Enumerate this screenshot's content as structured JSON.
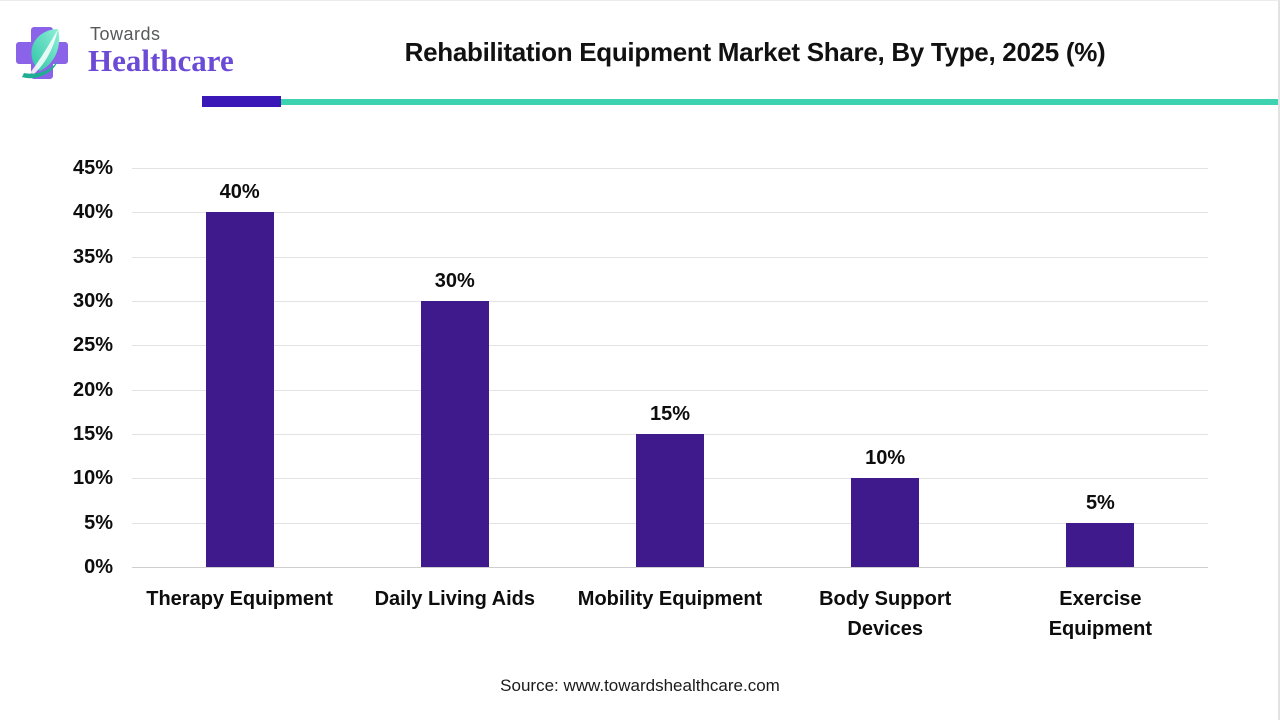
{
  "header": {
    "logo": {
      "line1": "Towards",
      "line2": "Healthcare"
    },
    "title": "Rehabilitation Equipment Market Share, By Type, 2025 (%)",
    "accent_purple": "#3a18b8",
    "accent_teal": "#3ed3b0"
  },
  "chart_data": {
    "type": "bar",
    "title": "Rehabilitation Equipment Market Share, By Type, 2025 (%)",
    "categories": [
      "Therapy Equipment",
      "Daily Living Aids",
      "Mobility Equipment",
      "Body Support Devices",
      "Exercise Equipment"
    ],
    "category_lines": [
      [
        "Therapy Equipment"
      ],
      [
        "Daily Living Aids"
      ],
      [
        "Mobility Equipment"
      ],
      [
        "Body Support",
        "Devices"
      ],
      [
        "Exercise",
        "Equipment"
      ]
    ],
    "values": [
      40,
      30,
      15,
      10,
      5
    ],
    "value_labels": [
      "40%",
      "30%",
      "15%",
      "10%",
      "5%"
    ],
    "xlabel": "",
    "ylabel": "",
    "ylim": [
      0,
      45
    ],
    "ytick_step": 5,
    "ytick_labels": [
      "0%",
      "5%",
      "10%",
      "15%",
      "20%",
      "25%",
      "30%",
      "35%",
      "40%",
      "45%"
    ],
    "grid": true,
    "legend_position": "none",
    "bar_color": "#3e1a8c",
    "label_color": "#0d0d0d"
  },
  "footer": {
    "source": "Source: www.towardshealthcare.com"
  }
}
